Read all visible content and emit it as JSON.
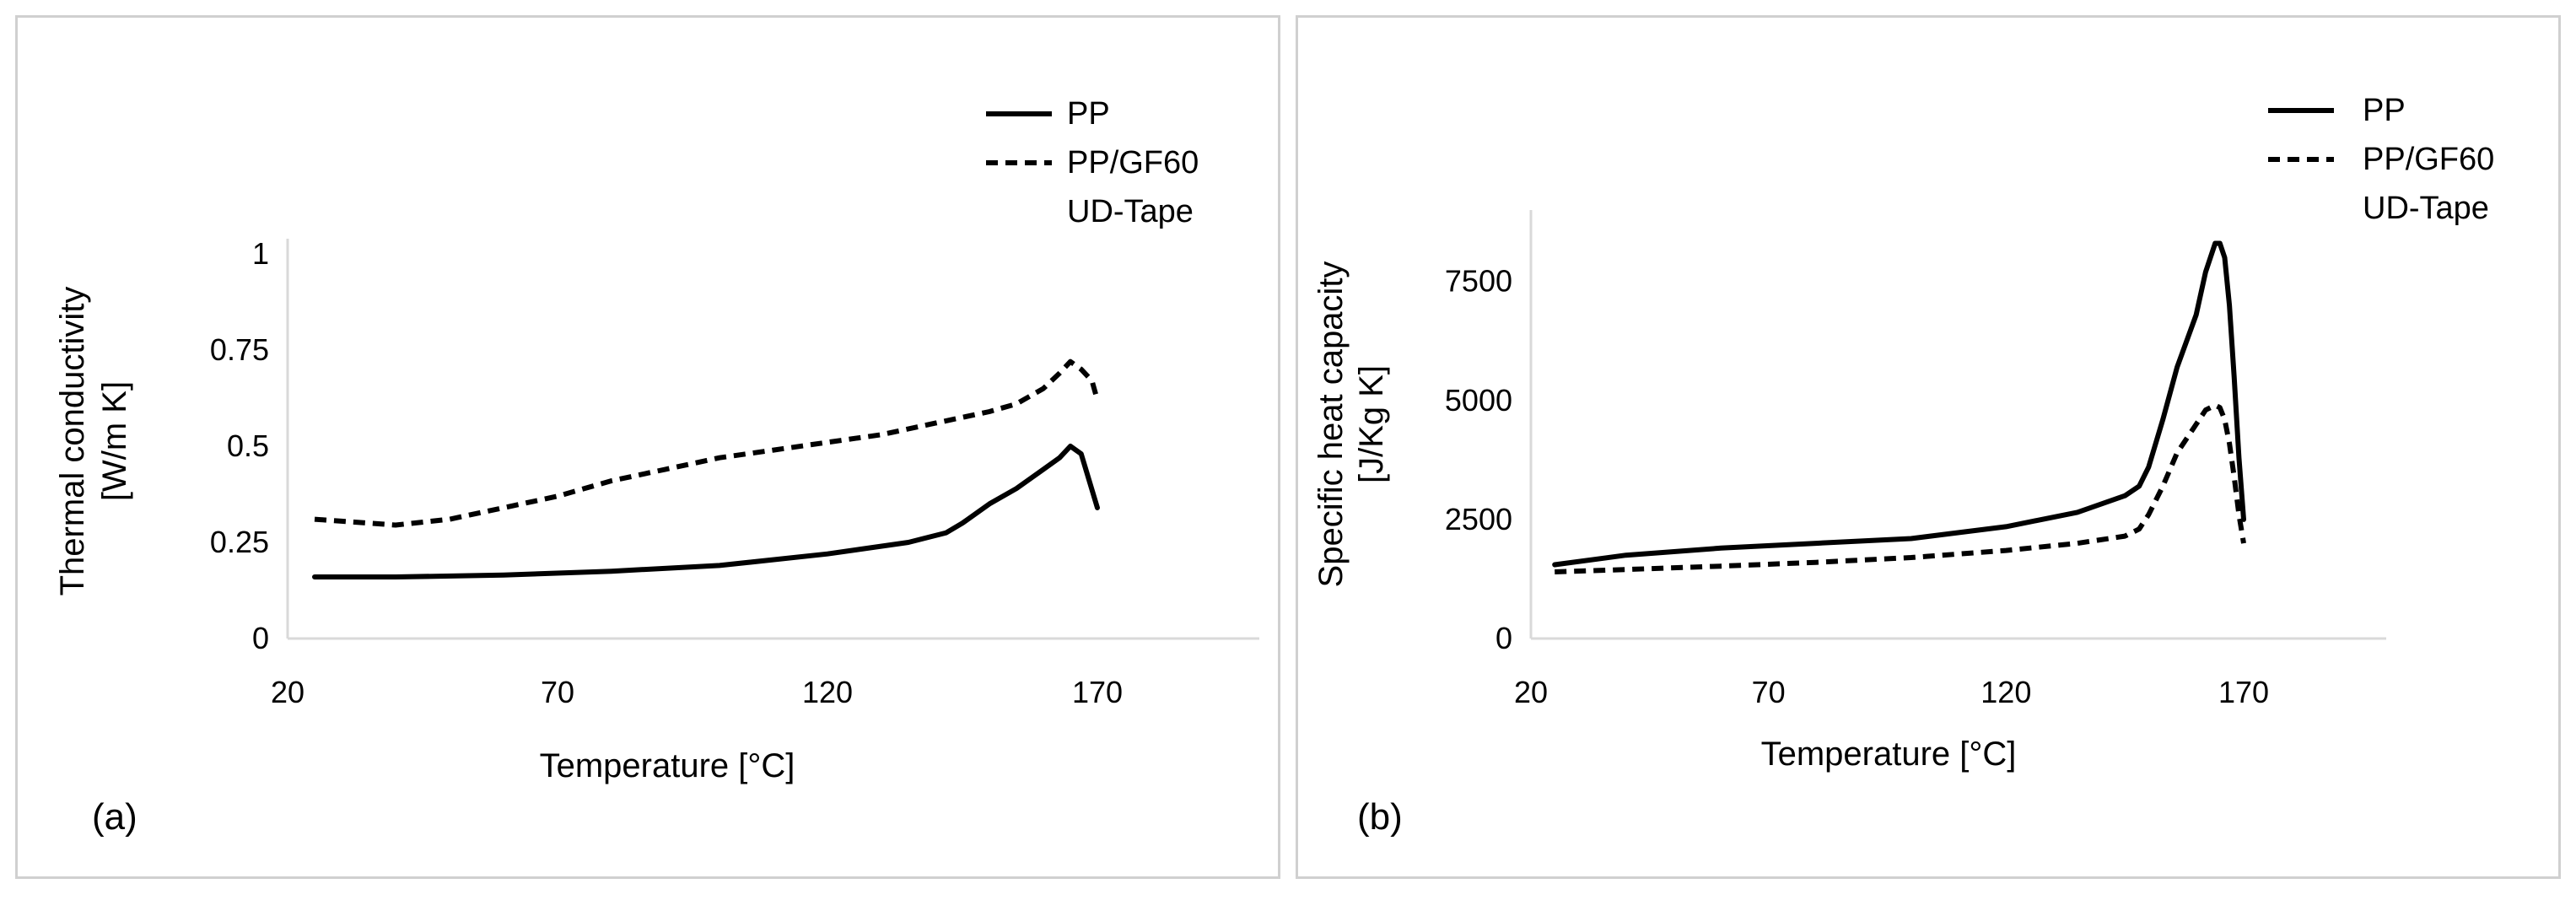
{
  "chart_data": [
    {
      "type": "line",
      "panel_label": "(a)",
      "title": "",
      "xlabel": "Temperature [°C]",
      "ylabel_line1": "Thermal conductivity",
      "ylabel_line2": "[W/m K]",
      "xlim": [
        20,
        200
      ],
      "ylim": [
        0,
        1
      ],
      "xticks": [
        20,
        70,
        120,
        170
      ],
      "yticks": [
        0,
        0.25,
        0.5,
        0.75,
        1
      ],
      "xtick_labels": [
        "20",
        "70",
        "120",
        "170"
      ],
      "ytick_labels": [
        "0",
        "0.25",
        "0.5",
        "0.75",
        "1"
      ],
      "grid": false,
      "legend_position": "top-right",
      "series": [
        {
          "name": "PP",
          "dash": "solid",
          "x": [
            25,
            40,
            60,
            80,
            100,
            120,
            135,
            142,
            145,
            150,
            155,
            160,
            163,
            165,
            167,
            170
          ],
          "y": [
            0.16,
            0.16,
            0.165,
            0.175,
            0.19,
            0.22,
            0.25,
            0.275,
            0.3,
            0.35,
            0.39,
            0.44,
            0.47,
            0.5,
            0.48,
            0.34
          ]
        },
        {
          "name": "PP/GF60",
          "name_line2": "UD-Tape",
          "dash": "dashed",
          "x": [
            25,
            30,
            40,
            50,
            60,
            70,
            80,
            90,
            100,
            110,
            120,
            130,
            140,
            145,
            150,
            155,
            160,
            163,
            165,
            167,
            169,
            170
          ],
          "y": [
            0.31,
            0.305,
            0.295,
            0.31,
            0.34,
            0.37,
            0.41,
            0.44,
            0.47,
            0.49,
            0.51,
            0.53,
            0.56,
            0.575,
            0.59,
            0.61,
            0.65,
            0.69,
            0.72,
            0.7,
            0.67,
            0.62
          ]
        }
      ]
    },
    {
      "type": "line",
      "panel_label": "(b)",
      "title": "",
      "xlabel": "Temperature [°C]",
      "ylabel_line1": "Specific heat capacity",
      "ylabel_line2": "[J/Kg K]",
      "xlim": [
        20,
        200
      ],
      "ylim": [
        0,
        9000
      ],
      "xticks": [
        20,
        70,
        120,
        170
      ],
      "yticks": [
        0,
        2500,
        5000,
        7500
      ],
      "xtick_labels": [
        "20",
        "70",
        "120",
        "170"
      ],
      "ytick_labels": [
        "0",
        "2500",
        "5000",
        "7500"
      ],
      "grid": false,
      "legend_position": "top-right",
      "series": [
        {
          "name": "PP",
          "dash": "solid",
          "x": [
            25,
            40,
            60,
            80,
            100,
            120,
            135,
            145,
            148,
            150,
            153,
            156,
            160,
            162,
            164,
            165,
            166,
            167,
            168,
            169,
            170
          ],
          "y": [
            1550,
            1750,
            1900,
            2000,
            2100,
            2350,
            2650,
            3000,
            3200,
            3600,
            4600,
            5700,
            6800,
            7700,
            8300,
            8300,
            8000,
            7000,
            5500,
            3800,
            2500
          ]
        },
        {
          "name": "PP/GF60",
          "name_line2": "UD-Tape",
          "dash": "dashed",
          "x": [
            25,
            40,
            60,
            80,
            100,
            120,
            135,
            145,
            148,
            150,
            153,
            156,
            160,
            162,
            164,
            165,
            166,
            167,
            168,
            169,
            170
          ],
          "y": [
            1400,
            1450,
            1520,
            1600,
            1700,
            1850,
            2000,
            2150,
            2300,
            2600,
            3200,
            3900,
            4500,
            4800,
            4900,
            4850,
            4600,
            4100,
            3400,
            2600,
            2000
          ]
        }
      ]
    }
  ]
}
